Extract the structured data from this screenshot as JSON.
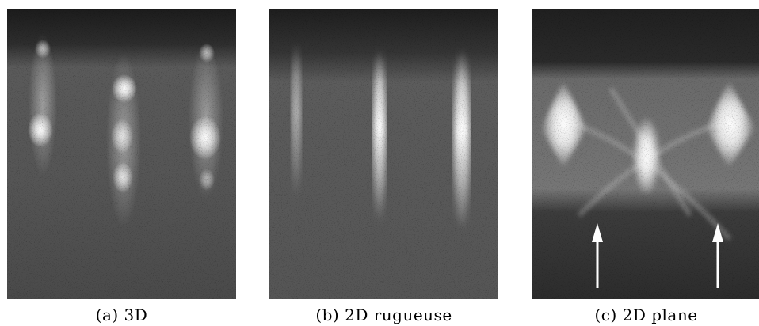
{
  "panels": [
    {
      "id": "a",
      "caption": "(a) 3D"
    },
    {
      "id": "b",
      "caption": "(b) 2D rugueuse"
    },
    {
      "id": "c",
      "caption": "(c) 2D plane"
    }
  ],
  "colors": {
    "background": "#ffffff",
    "spot": "#ffffff",
    "arrow": "#ffffff"
  }
}
